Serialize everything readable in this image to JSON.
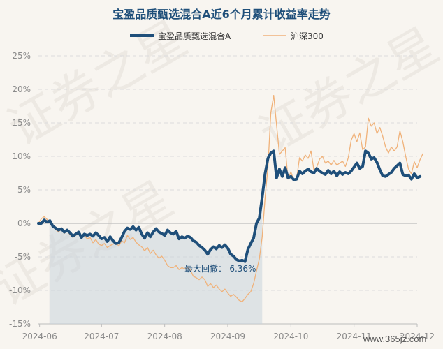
{
  "chart_data": {
    "type": "line",
    "title": "宝盈品质甄选混合A近6个月累计收益率走势",
    "y_ticks": [
      "25%",
      "20%",
      "15%",
      "10%",
      "5%",
      "0%",
      "-5%",
      "-10%",
      "-15%"
    ],
    "ylim": [
      -15,
      25
    ],
    "x_ticks": [
      "2024-06",
      "2024-07",
      "2024-08",
      "2024-09",
      "2024-10",
      "2024-11",
      "2024-12"
    ],
    "x_tick_pos": [
      0.4,
      22,
      44,
      66,
      88,
      110,
      132
    ],
    "xlim": [
      0,
      132
    ],
    "grid": true,
    "legend": "top-center",
    "annotation": "最大回撤：-6.36%",
    "drawdown_range": [
      4,
      78
    ],
    "series": [
      {
        "name": "宝盈品质甄选混合A",
        "color": "#1f4f7a",
        "values": [
          0.0,
          0.0,
          0.5,
          0.2,
          0.4,
          -0.4,
          -0.7,
          -1.0,
          -0.8,
          -1.3,
          -1.0,
          -1.4,
          -1.9,
          -1.6,
          -1.3,
          -2.1,
          -1.6,
          -1.8,
          -1.6,
          -1.9,
          -1.4,
          -1.8,
          -2.3,
          -2.1,
          -2.7,
          -2.0,
          -2.6,
          -3.0,
          -2.9,
          -2.1,
          -1.2,
          -0.7,
          -0.9,
          -0.5,
          -1.0,
          -0.6,
          -1.6,
          -2.2,
          -1.4,
          -2.0,
          -1.3,
          -0.8,
          -1.3,
          -1.5,
          -1.8,
          -1.0,
          -1.4,
          -1.6,
          -1.2,
          -2.3,
          -2.0,
          -2.2,
          -1.9,
          -2.1,
          -2.6,
          -2.8,
          -3.3,
          -3.6,
          -4.0,
          -4.6,
          -3.9,
          -3.5,
          -3.8,
          -3.3,
          -3.6,
          -3.2,
          -3.7,
          -4.6,
          -4.9,
          -5.4,
          -5.6,
          -5.5,
          -5.7,
          -3.9,
          -3.0,
          -2.2,
          0.0,
          0.8,
          3.9,
          7.4,
          9.7,
          10.5,
          10.8,
          6.8,
          8.1,
          7.0,
          8.3,
          6.8,
          7.0,
          6.5,
          6.6,
          7.8,
          7.4,
          7.8,
          8.1,
          7.7,
          7.5,
          8.2,
          7.8,
          7.5,
          7.3,
          7.9,
          7.4,
          7.8,
          7.1,
          7.7,
          7.3,
          7.6,
          7.4,
          7.8,
          8.4,
          9.0,
          8.2,
          8.5,
          10.8,
          10.5,
          9.6,
          9.8,
          9.1,
          8.0,
          7.1,
          7.0,
          7.3,
          7.6,
          8.2,
          8.6,
          9.0,
          7.3,
          7.1,
          7.2,
          6.6,
          7.4,
          6.8,
          7.0
        ]
      },
      {
        "name": "沪深300",
        "color": "#f0b27a",
        "values": [
          0.0,
          0.7,
          1.0,
          0.6,
          0.0,
          -0.5,
          -0.9,
          -1.3,
          -0.8,
          -1.5,
          -1.1,
          -1.7,
          -2.1,
          -1.8,
          -1.4,
          -2.2,
          -1.8,
          -2.3,
          -2.1,
          -2.9,
          -2.4,
          -3.1,
          -3.3,
          -3.0,
          -3.6,
          -3.3,
          -3.1,
          -2.8,
          -3.4,
          -2.6,
          -2.9,
          -1.8,
          -2.4,
          -2.1,
          -2.8,
          -3.2,
          -3.5,
          -4.1,
          -3.6,
          -4.5,
          -4.0,
          -4.7,
          -5.2,
          -4.9,
          -5.5,
          -6.3,
          -6.6,
          -6.6,
          -6.3,
          -6.9,
          -6.6,
          -6.8,
          -6.6,
          -7.0,
          -7.9,
          -8.1,
          -8.4,
          -8.0,
          -8.4,
          -9.4,
          -9.0,
          -9.6,
          -9.2,
          -9.8,
          -10.2,
          -9.8,
          -10.4,
          -10.9,
          -10.6,
          -11.0,
          -11.5,
          -11.7,
          -11.2,
          -10.6,
          -10.2,
          -9.0,
          -7.1,
          -5.3,
          -2.0,
          3.8,
          8.4,
          16.5,
          19.1,
          14.7,
          10.3,
          10.8,
          11.3,
          6.6,
          7.7,
          6.4,
          6.7,
          9.8,
          9.3,
          10.2,
          9.7,
          10.8,
          8.0,
          8.4,
          9.6,
          10.0,
          9.0,
          9.3,
          8.7,
          9.4,
          8.7,
          9.0,
          9.3,
          8.5,
          9.8,
          12.4,
          13.4,
          12.2,
          13.5,
          11.0,
          11.4,
          15.7,
          14.5,
          15.0,
          13.4,
          14.3,
          13.0,
          11.4,
          10.5,
          11.4,
          10.8,
          11.4,
          13.8,
          12.2,
          10.0,
          8.1,
          7.4,
          9.2,
          8.3,
          9.5,
          10.4
        ]
      }
    ]
  },
  "watermarks": [
    "证券之星",
    "证券之星",
    "证券之星"
  ],
  "site": "www.365jz.com"
}
